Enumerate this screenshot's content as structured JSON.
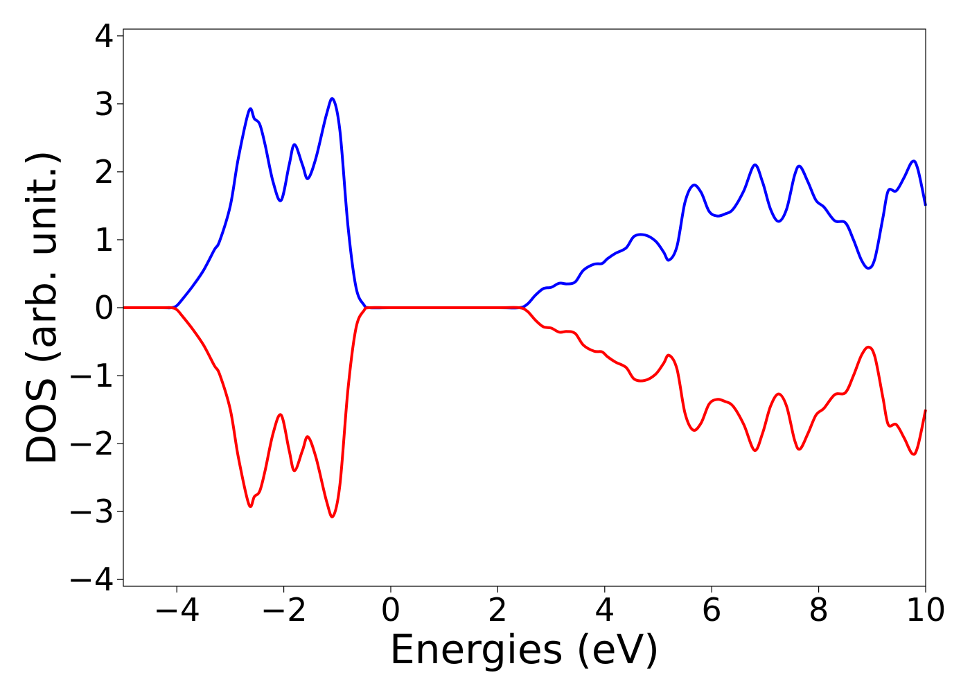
{
  "chart_data": {
    "type": "line",
    "title": "",
    "xlabel": "Energies (eV)",
    "ylabel": "DOS (arb. unit.)",
    "xlim": [
      -5,
      10
    ],
    "ylim": [
      -4.1,
      4.1
    ],
    "xticks": [
      -4,
      -2,
      0,
      2,
      4,
      6,
      8,
      10
    ],
    "xtick_labels": [
      "−4",
      "−2",
      "0",
      "2",
      "4",
      "6",
      "8",
      "10"
    ],
    "yticks": [
      -4,
      -3,
      -2,
      -1,
      0,
      1,
      2,
      3,
      4
    ],
    "ytick_labels": [
      "−4",
      "−3",
      "−2",
      "−1",
      "0",
      "1",
      "2",
      "3",
      "4"
    ],
    "grid": false,
    "legend": "none",
    "series": [
      {
        "color": "#0000ff",
        "x": [
          -5.0,
          -4.3,
          -4.1,
          -4.0,
          -3.9,
          -3.7,
          -3.5,
          -3.3,
          -3.2,
          -3.0,
          -2.85,
          -2.65,
          -2.55,
          -2.45,
          -2.35,
          -2.2,
          -2.05,
          -1.9,
          -1.8,
          -1.65,
          -1.55,
          -1.4,
          -1.2,
          -1.08,
          -0.95,
          -0.8,
          -0.65,
          -0.5,
          -0.4,
          0.0,
          1.0,
          2.0,
          2.4,
          2.55,
          2.7,
          2.85,
          3.0,
          3.15,
          3.3,
          3.45,
          3.6,
          3.8,
          3.95,
          4.05,
          4.2,
          4.4,
          4.55,
          4.75,
          4.95,
          5.1,
          5.2,
          5.35,
          5.5,
          5.65,
          5.8,
          5.95,
          6.1,
          6.25,
          6.4,
          6.6,
          6.8,
          6.95,
          7.1,
          7.25,
          7.4,
          7.55,
          7.65,
          7.8,
          7.95,
          8.1,
          8.3,
          8.5,
          8.65,
          8.8,
          8.93,
          9.05,
          9.2,
          9.3,
          9.45,
          9.6,
          9.75,
          9.85,
          10.0
        ],
        "y": [
          0.0,
          0.0,
          0.0,
          0.03,
          0.12,
          0.32,
          0.55,
          0.85,
          0.98,
          1.5,
          2.2,
          2.9,
          2.78,
          2.7,
          2.4,
          1.85,
          1.58,
          2.1,
          2.4,
          2.1,
          1.9,
          2.2,
          2.85,
          3.07,
          2.6,
          1.2,
          0.3,
          0.04,
          0.0,
          0.0,
          0.0,
          0.0,
          0.0,
          0.05,
          0.18,
          0.28,
          0.3,
          0.36,
          0.35,
          0.38,
          0.55,
          0.64,
          0.65,
          0.72,
          0.8,
          0.88,
          1.05,
          1.07,
          0.98,
          0.82,
          0.7,
          0.9,
          1.55,
          1.8,
          1.7,
          1.42,
          1.35,
          1.38,
          1.45,
          1.72,
          2.1,
          1.85,
          1.45,
          1.27,
          1.45,
          1.95,
          2.08,
          1.85,
          1.58,
          1.48,
          1.28,
          1.25,
          1.0,
          0.7,
          0.58,
          0.72,
          1.32,
          1.72,
          1.72,
          1.92,
          2.15,
          2.05,
          1.5
        ]
      },
      {
        "color": "#ff0000",
        "x": [
          -5.0,
          -4.3,
          -4.1,
          -4.0,
          -3.9,
          -3.7,
          -3.5,
          -3.3,
          -3.2,
          -3.0,
          -2.85,
          -2.65,
          -2.55,
          -2.45,
          -2.35,
          -2.2,
          -2.05,
          -1.9,
          -1.8,
          -1.65,
          -1.55,
          -1.4,
          -1.2,
          -1.08,
          -0.95,
          -0.8,
          -0.65,
          -0.5,
          -0.4,
          0.0,
          1.0,
          2.0,
          2.4,
          2.55,
          2.7,
          2.85,
          3.0,
          3.15,
          3.3,
          3.45,
          3.6,
          3.8,
          3.95,
          4.05,
          4.2,
          4.4,
          4.55,
          4.75,
          4.95,
          5.1,
          5.2,
          5.35,
          5.5,
          5.65,
          5.8,
          5.95,
          6.1,
          6.25,
          6.4,
          6.6,
          6.8,
          6.95,
          7.1,
          7.25,
          7.4,
          7.55,
          7.65,
          7.8,
          7.95,
          8.1,
          8.3,
          8.5,
          8.65,
          8.8,
          8.93,
          9.05,
          9.2,
          9.3,
          9.45,
          9.6,
          9.75,
          9.85,
          10.0
        ],
        "y": [
          0.0,
          0.0,
          0.0,
          -0.03,
          -0.12,
          -0.32,
          -0.55,
          -0.85,
          -0.98,
          -1.5,
          -2.2,
          -2.9,
          -2.78,
          -2.7,
          -2.4,
          -1.85,
          -1.58,
          -2.1,
          -2.4,
          -2.1,
          -1.9,
          -2.2,
          -2.85,
          -3.07,
          -2.6,
          -1.2,
          -0.3,
          -0.04,
          0.0,
          0.0,
          0.0,
          0.0,
          0.0,
          -0.05,
          -0.18,
          -0.28,
          -0.3,
          -0.36,
          -0.35,
          -0.38,
          -0.55,
          -0.64,
          -0.65,
          -0.72,
          -0.8,
          -0.88,
          -1.05,
          -1.07,
          -0.98,
          -0.82,
          -0.7,
          -0.9,
          -1.55,
          -1.8,
          -1.7,
          -1.42,
          -1.35,
          -1.38,
          -1.45,
          -1.72,
          -2.1,
          -1.85,
          -1.45,
          -1.27,
          -1.45,
          -1.95,
          -2.08,
          -1.85,
          -1.58,
          -1.48,
          -1.28,
          -1.25,
          -1.0,
          -0.7,
          -0.58,
          -0.72,
          -1.32,
          -1.72,
          -1.72,
          -1.92,
          -2.15,
          -2.05,
          -1.5
        ]
      }
    ]
  }
}
